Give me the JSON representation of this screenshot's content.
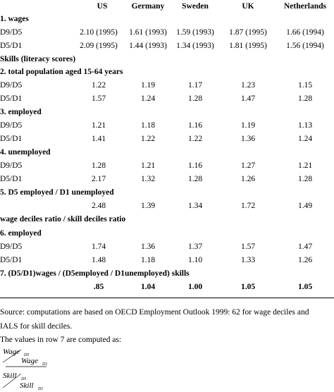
{
  "table": {
    "header": [
      "US",
      "Germany",
      "Sweden",
      "UK",
      "Netherlands"
    ],
    "rows": [
      {
        "heading": "1. wages"
      },
      {
        "label": "D9/D5",
        "cells": [
          "2.10 (1995)",
          "1.61 (1993)",
          "1.59 (1993)",
          "1.87 (1995)",
          "1.66 (1994)"
        ]
      },
      {
        "label": "D5/D1",
        "cells": [
          "2.09 (1995)",
          "1.44 (1993)",
          "1.34 (1993)",
          "1.81 (1995)",
          "1.56 (1994)"
        ]
      },
      {
        "heading": "Skills (literacy scores)"
      },
      {
        "heading": "2.  total population aged 15-64 years"
      },
      {
        "label": "D9/D5",
        "cells": [
          "1.22",
          "1.19",
          "1.17",
          "1.23",
          "1.15"
        ]
      },
      {
        "label": "D5/D1",
        "cells": [
          "1.57",
          "1.24",
          "1.28",
          "1.47",
          "1.28"
        ]
      },
      {
        "heading": "3.  employed"
      },
      {
        "label": "D9/D5",
        "cells": [
          "1.21",
          "1.18",
          "1.16",
          "1.19",
          "1.13"
        ]
      },
      {
        "label": "D5/D1",
        "cells": [
          "1.41",
          "1.22",
          "1.22",
          "1.36",
          "1.24"
        ]
      },
      {
        "heading": "4.  unemployed"
      },
      {
        "label": "D9/D5",
        "cells": [
          "1.28",
          "1.21",
          "1.16",
          "1.27",
          "1.21"
        ]
      },
      {
        "label": "D5/D1",
        "cells": [
          "2.17",
          "1.32",
          "1.28",
          "1.26",
          "1.28"
        ]
      },
      {
        "heading": "5.  D5 employed / D1 unemployed"
      },
      {
        "cells": [
          "2.48",
          "1.39",
          "1.34",
          "1.72",
          "1.49"
        ]
      },
      {
        "heading": "wage deciles ratio / skill deciles ratio"
      },
      {
        "heading": "6.  employed"
      },
      {
        "label": "D9/D5",
        "cells": [
          "1.74",
          "1.36",
          "1.37",
          "1.57",
          "1.47"
        ]
      },
      {
        "label": "D5/D1",
        "cells": [
          "1.48",
          "1.18",
          "1.10",
          "1.33",
          "1.26"
        ]
      },
      {
        "heading": "7.  (D5/D1)wages / (D5employed / D1unemployed) skills"
      },
      {
        "cells": [
          ".85",
          "1.04",
          "1.00",
          "1.05",
          "1.05"
        ],
        "bold": true
      }
    ]
  },
  "notes": {
    "source": "Source: computations are based on OECD Employment Outlook 1999: 62 for wage deciles and IALS for skill deciles.",
    "formula_intro": "The values in row 7 are computed as:",
    "formula": {
      "top_left": "Wage",
      "top_left_sub": "D5",
      "top_right": "Wage",
      "top_right_sub": "D1",
      "bottom_left": "Skill",
      "bottom_left_sub": "D5",
      "bottom_right": "Skill",
      "bottom_right_sub": "D1"
    }
  }
}
